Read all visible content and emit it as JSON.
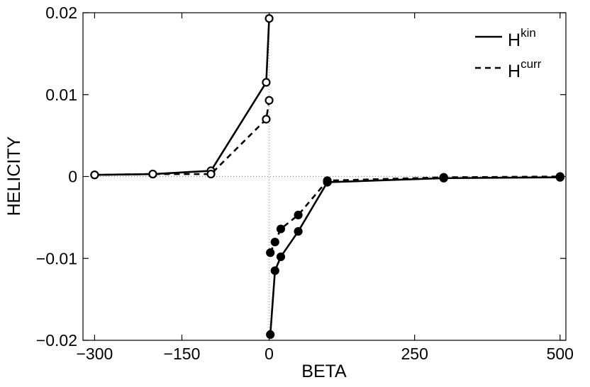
{
  "chart_data": {
    "type": "line",
    "title": "",
    "xlabel": "BETA",
    "ylabel": "HELICITY",
    "xlim": [
      -320,
      510
    ],
    "ylim": [
      -0.02,
      0.02
    ],
    "xticks": [
      -300,
      -150,
      0,
      250,
      500
    ],
    "xtick_labels": [
      "−300",
      "−150",
      "0",
      "250",
      "500"
    ],
    "yticks": [
      -0.02,
      -0.01,
      0,
      0.01,
      0.02
    ],
    "ytick_labels": [
      "−0.02",
      "−0.01",
      "0",
      "0.01",
      "0.02"
    ],
    "grid": false,
    "zero_lines": true,
    "legend_position": "top-right",
    "series": [
      {
        "name": "H",
        "name_sup": "kin",
        "line_style": "solid",
        "marker": "open-circle",
        "x": [
          -300,
          -200,
          -100,
          -5,
          0
        ],
        "y": [
          0.0002,
          0.0003,
          0.0007,
          0.0115,
          0.0193
        ]
      },
      {
        "name": "H",
        "name_sup": "curr",
        "line_style": "dashed",
        "marker": "open-circle",
        "x": [
          -300,
          -200,
          -100,
          -5,
          0
        ],
        "y": [
          0.0002,
          0.0003,
          0.0003,
          0.007,
          0.0093
        ]
      },
      {
        "name": "",
        "line_style": "solid",
        "marker": "filled-circle",
        "x": [
          2,
          10,
          20,
          50,
          100,
          300,
          500
        ],
        "y": [
          -0.0193,
          -0.0115,
          -0.0098,
          -0.0067,
          -0.0007,
          -0.0002,
          -0.0001
        ]
      },
      {
        "name": "",
        "line_style": "dashed",
        "marker": "filled-circle",
        "x": [
          2,
          10,
          20,
          50,
          100,
          300,
          500
        ],
        "y": [
          -0.0093,
          -0.008,
          -0.0064,
          -0.0047,
          -0.0005,
          -0.0001,
          0.0
        ]
      }
    ]
  }
}
